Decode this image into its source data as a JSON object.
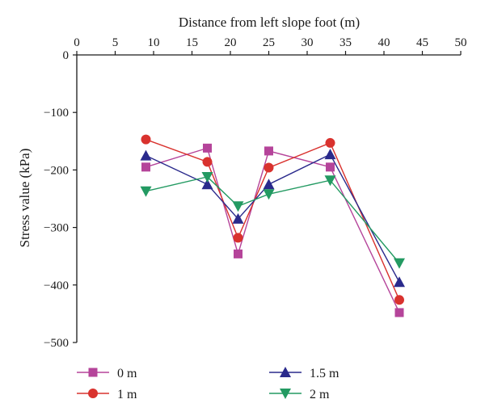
{
  "chart_data": {
    "type": "line",
    "xlabel": "Distance from left slope foot (m)",
    "ylabel": "Stress value (kPa)",
    "xlim": [
      0,
      50
    ],
    "ylim": [
      -500,
      0
    ],
    "x_ticks": [
      0,
      5,
      10,
      15,
      20,
      25,
      30,
      35,
      40,
      45,
      50
    ],
    "y_ticks": [
      0,
      -100,
      -200,
      -300,
      -400,
      -500
    ],
    "y_tick_labels": [
      "0",
      "−100",
      "−200",
      "−300",
      "−400",
      "−500"
    ],
    "x_axis_position": "top",
    "grid": false,
    "legend_position": "bottom",
    "x": [
      9,
      17,
      21,
      25,
      33,
      42
    ],
    "series": [
      {
        "name": "0 m",
        "color": "#b5449a",
        "marker": "square",
        "values": [
          -195,
          -162,
          -346,
          -167,
          -195,
          -448
        ]
      },
      {
        "name": "1 m",
        "color": "#d9322e",
        "marker": "circle",
        "values": [
          -147,
          -186,
          -318,
          -196,
          -153,
          -426
        ]
      },
      {
        "name": "1.5 m",
        "color": "#2a2a8c",
        "marker": "triangle-up",
        "values": [
          -175,
          -225,
          -285,
          -225,
          -173,
          -395
        ]
      },
      {
        "name": "2 m",
        "color": "#239a62",
        "marker": "triangle-down",
        "values": [
          -237,
          -212,
          -263,
          -242,
          -218,
          -362
        ]
      }
    ]
  }
}
